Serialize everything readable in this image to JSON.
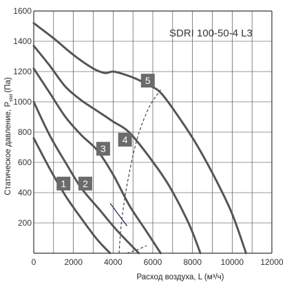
{
  "chart_data": {
    "type": "line",
    "title": "SDRI 100-50-4 L3",
    "xlabel": "Расход воздуха, L (м³/ч)",
    "ylabel_main": "Статическое давление, P",
    "ylabel_sub": "stat",
    "ylabel_unit": "(Па)",
    "xlim": [
      0,
      12000
    ],
    "ylim": [
      0,
      1600
    ],
    "x_ticks": [
      "0",
      "2000",
      "4000",
      "6000",
      "8000",
      "10000",
      "12000"
    ],
    "y_ticks": [
      "200",
      "400",
      "600",
      "800",
      "1000",
      "1200",
      "1400",
      "1600"
    ],
    "grid": true,
    "colors": {
      "curve": "#555555",
      "grid": "#333333",
      "badge": "#6b6b6b",
      "efficiency_segment": "#1a1a5e"
    },
    "series": [
      {
        "label": "1",
        "x": [
          0,
          800,
          1600,
          2400,
          3200,
          3850
        ],
        "y": [
          760,
          560,
          380,
          230,
          90,
          0
        ],
        "label_at": [
          1500,
          460
        ]
      },
      {
        "label": "2",
        "x": [
          0,
          800,
          1600,
          2400,
          3300,
          4200,
          5300
        ],
        "y": [
          1000,
          780,
          600,
          430,
          290,
          150,
          0
        ],
        "label_at": [
          2600,
          460
        ]
      },
      {
        "label": "3",
        "x": [
          0,
          800,
          1600,
          2400,
          3200,
          4000,
          4800,
          5600,
          6400
        ],
        "y": [
          1220,
          1060,
          900,
          780,
          680,
          520,
          320,
          160,
          0
        ],
        "label_at": [
          3500,
          690
        ]
      },
      {
        "label": "4",
        "x": [
          0,
          800,
          1600,
          2400,
          3200,
          4000,
          4800,
          5800,
          6800,
          7800,
          8400
        ],
        "y": [
          1370,
          1240,
          1100,
          1010,
          940,
          870,
          800,
          640,
          450,
          200,
          0
        ],
        "label_at": [
          4600,
          750
        ]
      },
      {
        "label": "5",
        "x": [
          0,
          1000,
          2000,
          3000,
          3600,
          4000,
          4600,
          5200,
          5800,
          6400,
          7200,
          8200,
          9200,
          10000,
          10700
        ],
        "y": [
          1520,
          1420,
          1310,
          1220,
          1190,
          1200,
          1180,
          1150,
          1110,
          1060,
          920,
          720,
          480,
          260,
          0
        ],
        "label_at": [
          5750,
          1140
        ]
      }
    ],
    "efficiency_lines": [
      {
        "x": [
          4300,
          4420,
          4700,
          5200,
          5800,
          6400
        ],
        "y": [
          0,
          200,
          450,
          750,
          960,
          1080
        ]
      },
      {
        "x": [
          4700,
          5150,
          5700
        ],
        "y": [
          0,
          20,
          50
        ]
      }
    ]
  }
}
